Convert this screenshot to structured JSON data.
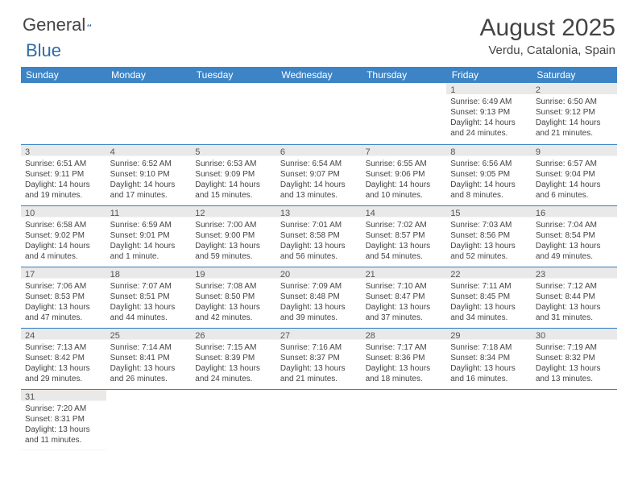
{
  "logo": {
    "text1": "General",
    "text2": "Blue"
  },
  "header": {
    "month": "August 2025",
    "location": "Verdu, Catalonia, Spain"
  },
  "dow": [
    "Sunday",
    "Monday",
    "Tuesday",
    "Wednesday",
    "Thursday",
    "Friday",
    "Saturday"
  ],
  "style": {
    "header_bg": "#3d84c6",
    "header_fg": "#ffffff",
    "shade_bg": "#e9e9e9",
    "border_color": "#3d84c6",
    "text_color": "#444444",
    "daynum_fontsize": 11,
    "cell_fontsize": 10,
    "month_fontsize": 30,
    "location_fontsize": 15
  },
  "weeks": [
    [
      null,
      null,
      null,
      null,
      null,
      {
        "n": "1",
        "sr": "Sunrise: 6:49 AM",
        "ss": "Sunset: 9:13 PM",
        "d1": "Daylight: 14 hours",
        "d2": "and 24 minutes."
      },
      {
        "n": "2",
        "sr": "Sunrise: 6:50 AM",
        "ss": "Sunset: 9:12 PM",
        "d1": "Daylight: 14 hours",
        "d2": "and 21 minutes."
      }
    ],
    [
      {
        "n": "3",
        "sr": "Sunrise: 6:51 AM",
        "ss": "Sunset: 9:11 PM",
        "d1": "Daylight: 14 hours",
        "d2": "and 19 minutes."
      },
      {
        "n": "4",
        "sr": "Sunrise: 6:52 AM",
        "ss": "Sunset: 9:10 PM",
        "d1": "Daylight: 14 hours",
        "d2": "and 17 minutes."
      },
      {
        "n": "5",
        "sr": "Sunrise: 6:53 AM",
        "ss": "Sunset: 9:09 PM",
        "d1": "Daylight: 14 hours",
        "d2": "and 15 minutes."
      },
      {
        "n": "6",
        "sr": "Sunrise: 6:54 AM",
        "ss": "Sunset: 9:07 PM",
        "d1": "Daylight: 14 hours",
        "d2": "and 13 minutes."
      },
      {
        "n": "7",
        "sr": "Sunrise: 6:55 AM",
        "ss": "Sunset: 9:06 PM",
        "d1": "Daylight: 14 hours",
        "d2": "and 10 minutes."
      },
      {
        "n": "8",
        "sr": "Sunrise: 6:56 AM",
        "ss": "Sunset: 9:05 PM",
        "d1": "Daylight: 14 hours",
        "d2": "and 8 minutes."
      },
      {
        "n": "9",
        "sr": "Sunrise: 6:57 AM",
        "ss": "Sunset: 9:04 PM",
        "d1": "Daylight: 14 hours",
        "d2": "and 6 minutes."
      }
    ],
    [
      {
        "n": "10",
        "sr": "Sunrise: 6:58 AM",
        "ss": "Sunset: 9:02 PM",
        "d1": "Daylight: 14 hours",
        "d2": "and 4 minutes."
      },
      {
        "n": "11",
        "sr": "Sunrise: 6:59 AM",
        "ss": "Sunset: 9:01 PM",
        "d1": "Daylight: 14 hours",
        "d2": "and 1 minute."
      },
      {
        "n": "12",
        "sr": "Sunrise: 7:00 AM",
        "ss": "Sunset: 9:00 PM",
        "d1": "Daylight: 13 hours",
        "d2": "and 59 minutes."
      },
      {
        "n": "13",
        "sr": "Sunrise: 7:01 AM",
        "ss": "Sunset: 8:58 PM",
        "d1": "Daylight: 13 hours",
        "d2": "and 56 minutes."
      },
      {
        "n": "14",
        "sr": "Sunrise: 7:02 AM",
        "ss": "Sunset: 8:57 PM",
        "d1": "Daylight: 13 hours",
        "d2": "and 54 minutes."
      },
      {
        "n": "15",
        "sr": "Sunrise: 7:03 AM",
        "ss": "Sunset: 8:56 PM",
        "d1": "Daylight: 13 hours",
        "d2": "and 52 minutes."
      },
      {
        "n": "16",
        "sr": "Sunrise: 7:04 AM",
        "ss": "Sunset: 8:54 PM",
        "d1": "Daylight: 13 hours",
        "d2": "and 49 minutes."
      }
    ],
    [
      {
        "n": "17",
        "sr": "Sunrise: 7:06 AM",
        "ss": "Sunset: 8:53 PM",
        "d1": "Daylight: 13 hours",
        "d2": "and 47 minutes."
      },
      {
        "n": "18",
        "sr": "Sunrise: 7:07 AM",
        "ss": "Sunset: 8:51 PM",
        "d1": "Daylight: 13 hours",
        "d2": "and 44 minutes."
      },
      {
        "n": "19",
        "sr": "Sunrise: 7:08 AM",
        "ss": "Sunset: 8:50 PM",
        "d1": "Daylight: 13 hours",
        "d2": "and 42 minutes."
      },
      {
        "n": "20",
        "sr": "Sunrise: 7:09 AM",
        "ss": "Sunset: 8:48 PM",
        "d1": "Daylight: 13 hours",
        "d2": "and 39 minutes."
      },
      {
        "n": "21",
        "sr": "Sunrise: 7:10 AM",
        "ss": "Sunset: 8:47 PM",
        "d1": "Daylight: 13 hours",
        "d2": "and 37 minutes."
      },
      {
        "n": "22",
        "sr": "Sunrise: 7:11 AM",
        "ss": "Sunset: 8:45 PM",
        "d1": "Daylight: 13 hours",
        "d2": "and 34 minutes."
      },
      {
        "n": "23",
        "sr": "Sunrise: 7:12 AM",
        "ss": "Sunset: 8:44 PM",
        "d1": "Daylight: 13 hours",
        "d2": "and 31 minutes."
      }
    ],
    [
      {
        "n": "24",
        "sr": "Sunrise: 7:13 AM",
        "ss": "Sunset: 8:42 PM",
        "d1": "Daylight: 13 hours",
        "d2": "and 29 minutes."
      },
      {
        "n": "25",
        "sr": "Sunrise: 7:14 AM",
        "ss": "Sunset: 8:41 PM",
        "d1": "Daylight: 13 hours",
        "d2": "and 26 minutes."
      },
      {
        "n": "26",
        "sr": "Sunrise: 7:15 AM",
        "ss": "Sunset: 8:39 PM",
        "d1": "Daylight: 13 hours",
        "d2": "and 24 minutes."
      },
      {
        "n": "27",
        "sr": "Sunrise: 7:16 AM",
        "ss": "Sunset: 8:37 PM",
        "d1": "Daylight: 13 hours",
        "d2": "and 21 minutes."
      },
      {
        "n": "28",
        "sr": "Sunrise: 7:17 AM",
        "ss": "Sunset: 8:36 PM",
        "d1": "Daylight: 13 hours",
        "d2": "and 18 minutes."
      },
      {
        "n": "29",
        "sr": "Sunrise: 7:18 AM",
        "ss": "Sunset: 8:34 PM",
        "d1": "Daylight: 13 hours",
        "d2": "and 16 minutes."
      },
      {
        "n": "30",
        "sr": "Sunrise: 7:19 AM",
        "ss": "Sunset: 8:32 PM",
        "d1": "Daylight: 13 hours",
        "d2": "and 13 minutes."
      }
    ],
    [
      {
        "n": "31",
        "sr": "Sunrise: 7:20 AM",
        "ss": "Sunset: 8:31 PM",
        "d1": "Daylight: 13 hours",
        "d2": "and 11 minutes."
      },
      null,
      null,
      null,
      null,
      null,
      null
    ]
  ]
}
